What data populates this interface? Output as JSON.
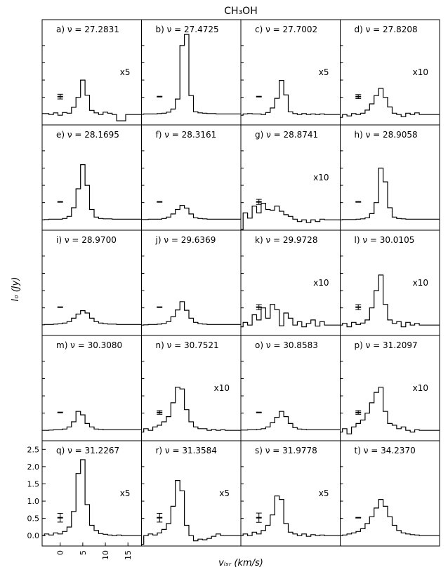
{
  "figure": {
    "title": "CH₃OH",
    "ylabel": "I₀ (Jy)",
    "xlabel": "vₗₛᵣ (km/s)",
    "x_ticks": [
      "0",
      "5",
      "10",
      "15"
    ],
    "y_ticks": [
      "0.0",
      "0.5",
      "1.0",
      "1.5",
      "2.0",
      "2.5"
    ]
  },
  "chart_data": {
    "type": "line",
    "layout": "grid of 5 rows by 4 columns of step-line spectra",
    "x_unit": "km/s",
    "xlim": [
      -4,
      18
    ],
    "ylim": [
      -0.3,
      2.75
    ],
    "common_velocity": [
      -4,
      -3,
      -2,
      -1,
      0,
      1,
      2,
      3,
      4,
      5,
      6,
      7,
      8,
      9,
      10,
      11,
      12,
      13,
      14,
      15,
      16,
      17,
      18
    ],
    "panels": [
      {
        "label": "a)",
        "freq": "ν = 27.2831",
        "scale": "x5",
        "errbar": 0.28,
        "values": [
          0.03,
          0.03,
          0.0,
          0.05,
          -0.02,
          0.06,
          0.04,
          0.21,
          0.5,
          1.0,
          0.56,
          0.12,
          0.05,
          0.0,
          0.07,
          0.04,
          0.0,
          -0.18,
          -0.18,
          0,
          0,
          0,
          0
        ]
      },
      {
        "label": "b)",
        "freq": "ν = 27.4725",
        "scale": "",
        "errbar": 0.0,
        "values": [
          0.01,
          0.02,
          0.02,
          0.02,
          0.03,
          0.04,
          0.07,
          0.16,
          0.45,
          2.0,
          2.32,
          0.55,
          0.08,
          0.05,
          0.04,
          0.03,
          0.03,
          0.02,
          0.02,
          0.02,
          0.02,
          0.02,
          0.02
        ]
      },
      {
        "label": "c)",
        "freq": "ν = 27.7002",
        "scale": "x5",
        "errbar": 0.0,
        "values": [
          -0.02,
          0.02,
          0.03,
          0.02,
          0.02,
          0.0,
          0.06,
          0.19,
          0.47,
          0.99,
          0.57,
          0.08,
          0.03,
          0.0,
          0.03,
          0.0,
          0.02,
          0.0,
          0.02,
          0,
          0,
          0,
          0
        ]
      },
      {
        "label": "d)",
        "freq": "ν = 27.8208",
        "scale": "x10",
        "errbar": 0.24,
        "values": [
          -0.08,
          0.0,
          -0.04,
          0.03,
          0.0,
          0.04,
          0.13,
          0.31,
          0.55,
          0.76,
          0.5,
          0.22,
          0.04,
          0.0,
          -0.06,
          0.04,
          0.0,
          0.05,
          0.0,
          0.0,
          0,
          0,
          0
        ]
      },
      {
        "label": "e)",
        "freq": "ν = 28.1695",
        "scale": "",
        "errbar": 0.0,
        "values": [
          0.0,
          0.01,
          0.02,
          0.02,
          0.02,
          0.04,
          0.1,
          0.35,
          0.9,
          1.6,
          1.0,
          0.3,
          0.08,
          0.04,
          0.03,
          0.03,
          0.02,
          0.02,
          0.02,
          0.02,
          0.02,
          0.02,
          0.02
        ]
      },
      {
        "label": "f)",
        "freq": "ν = 28.3161",
        "scale": "",
        "errbar": 0.0,
        "values": [
          0.01,
          0.01,
          0.02,
          0.02,
          0.02,
          0.04,
          0.08,
          0.17,
          0.3,
          0.42,
          0.34,
          0.17,
          0.06,
          0.04,
          0.03,
          0.02,
          0.02,
          0.02,
          0.02,
          0.02,
          0.02,
          0.02,
          0.02
        ]
      },
      {
        "label": "g)",
        "freq": "ν = 28.8741",
        "scale": "x10",
        "errbar": 0.3,
        "values": [
          -0.3,
          0.2,
          0.05,
          0.4,
          0.2,
          0.48,
          0.3,
          0.28,
          0.4,
          0.25,
          0.15,
          0.1,
          0.02,
          -0.05,
          0.0,
          -0.08,
          0.0,
          -0.05,
          0.02,
          0.0,
          0,
          0,
          0
        ]
      },
      {
        "label": "h)",
        "freq": "ν = 28.9058",
        "scale": "",
        "errbar": 0.0,
        "values": [
          0.0,
          0.01,
          0.01,
          0.01,
          0.02,
          0.03,
          0.06,
          0.18,
          0.5,
          1.5,
          1.1,
          0.35,
          0.08,
          0.04,
          0.03,
          0.02,
          0.02,
          0.02,
          0.02,
          0.02,
          0.02,
          0.02,
          0.02
        ]
      },
      {
        "label": "i)",
        "freq": "ν = 28.9700",
        "scale": "",
        "errbar": 0.0,
        "values": [
          0.01,
          0.02,
          0.02,
          0.03,
          0.04,
          0.06,
          0.1,
          0.2,
          0.32,
          0.42,
          0.35,
          0.2,
          0.1,
          0.06,
          0.04,
          0.03,
          0.03,
          0.02,
          0.02,
          0.02,
          0.02,
          0.02,
          0.02
        ]
      },
      {
        "label": "j)",
        "freq": "ν = 29.6369",
        "scale": "",
        "errbar": 0.0,
        "values": [
          0.0,
          0.01,
          0.02,
          0.02,
          0.03,
          0.05,
          0.1,
          0.24,
          0.44,
          0.68,
          0.43,
          0.2,
          0.08,
          0.04,
          0.03,
          0.02,
          0.02,
          0.02,
          0.02,
          0.02,
          0.02,
          0.02,
          0.02
        ]
      },
      {
        "label": "k)",
        "freq": "ν = 29.9728",
        "scale": "x10",
        "errbar": 0.3,
        "values": [
          -0.05,
          0.08,
          0.0,
          0.3,
          0.15,
          0.5,
          0.2,
          0.6,
          0.45,
          -0.02,
          0.35,
          0.2,
          0.0,
          0.1,
          -0.05,
          0.05,
          0.15,
          -0.03,
          0.1,
          0,
          0,
          0,
          0
        ]
      },
      {
        "label": "l)",
        "freq": "ν = 30.0105",
        "scale": "x10",
        "errbar": 0.3,
        "values": [
          0.0,
          0.05,
          -0.05,
          0.08,
          0.02,
          0.06,
          0.15,
          0.5,
          1.0,
          1.45,
          0.6,
          0.15,
          0.05,
          0.1,
          -0.05,
          0.08,
          0.0,
          0.05,
          0.0,
          0.0,
          0,
          0,
          0
        ]
      },
      {
        "label": "m)",
        "freq": "ν = 30.3080",
        "scale": "",
        "errbar": 0.0,
        "values": [
          0.0,
          0.0,
          0.01,
          0.02,
          0.02,
          0.04,
          0.1,
          0.25,
          0.55,
          0.45,
          0.2,
          0.1,
          0.04,
          0.03,
          0.02,
          0.02,
          0.02,
          0.02,
          0.02,
          0.02,
          0.02,
          0.02,
          0.02
        ]
      },
      {
        "label": "n)",
        "freq": "ν = 30.7521",
        "scale": "x10",
        "errbar": 0.22,
        "values": [
          -0.05,
          0.05,
          0.0,
          0.1,
          0.15,
          0.25,
          0.4,
          0.8,
          1.25,
          1.2,
          0.6,
          0.25,
          0.1,
          0.05,
          0.05,
          0.0,
          0.03,
          0.0,
          0.02,
          0,
          0,
          0,
          0
        ]
      },
      {
        "label": "o)",
        "freq": "ν = 30.8583",
        "scale": "",
        "errbar": 0.0,
        "values": [
          0.01,
          0.01,
          0.02,
          0.02,
          0.03,
          0.05,
          0.1,
          0.22,
          0.38,
          0.55,
          0.4,
          0.2,
          0.08,
          0.04,
          0.03,
          0.02,
          0.02,
          0.02,
          0.02,
          0.02,
          0.02,
          0.02,
          0.02
        ]
      },
      {
        "label": "p)",
        "freq": "ν = 31.2097",
        "scale": "x10",
        "errbar": 0.22,
        "values": [
          -0.05,
          0.05,
          -0.1,
          0.1,
          0.2,
          0.3,
          0.5,
          0.8,
          1.1,
          1.25,
          0.55,
          0.2,
          0.15,
          0.05,
          0.1,
          0.0,
          -0.05,
          0.02,
          0.0,
          0,
          0,
          0,
          0
        ]
      },
      {
        "label": "q)",
        "freq": "ν = 31.2267",
        "scale": "x5",
        "errbar": 0.52,
        "values": [
          0.0,
          0.05,
          0.02,
          0.08,
          0.05,
          0.12,
          0.25,
          0.7,
          1.8,
          2.2,
          0.9,
          0.3,
          0.15,
          0.06,
          0.04,
          0.02,
          0.0,
          0.02,
          0.0,
          0,
          0,
          0,
          0
        ]
      },
      {
        "label": "r)",
        "freq": "ν = 31.3584",
        "scale": "x5",
        "errbar": 0.52,
        "values": [
          -0.25,
          0.0,
          0.05,
          0.02,
          0.08,
          0.18,
          0.35,
          0.85,
          1.6,
          1.3,
          0.3,
          0.0,
          -0.15,
          -0.1,
          -0.12,
          -0.08,
          -0.02,
          0.05,
          0.0,
          0,
          0,
          0,
          0
        ]
      },
      {
        "label": "s)",
        "freq": "ν = 31.9778",
        "scale": "x5",
        "errbar": 0.55,
        "values": [
          0.0,
          0.05,
          0.0,
          0.1,
          0.05,
          0.15,
          0.3,
          0.6,
          1.15,
          1.05,
          0.35,
          0.1,
          0.05,
          0.0,
          0.05,
          -0.02,
          0.03,
          0.0,
          0.02,
          0,
          0,
          0,
          0
        ]
      },
      {
        "label": "t)",
        "freq": "ν = 34.2370",
        "scale": "",
        "errbar": 0.0,
        "values": [
          0.0,
          0.02,
          0.05,
          0.08,
          0.12,
          0.2,
          0.35,
          0.55,
          0.8,
          1.05,
          0.85,
          0.55,
          0.3,
          0.15,
          0.08,
          0.05,
          0.03,
          0.02,
          0.0,
          0.0,
          0.0,
          0.0,
          0.0
        ]
      }
    ]
  }
}
